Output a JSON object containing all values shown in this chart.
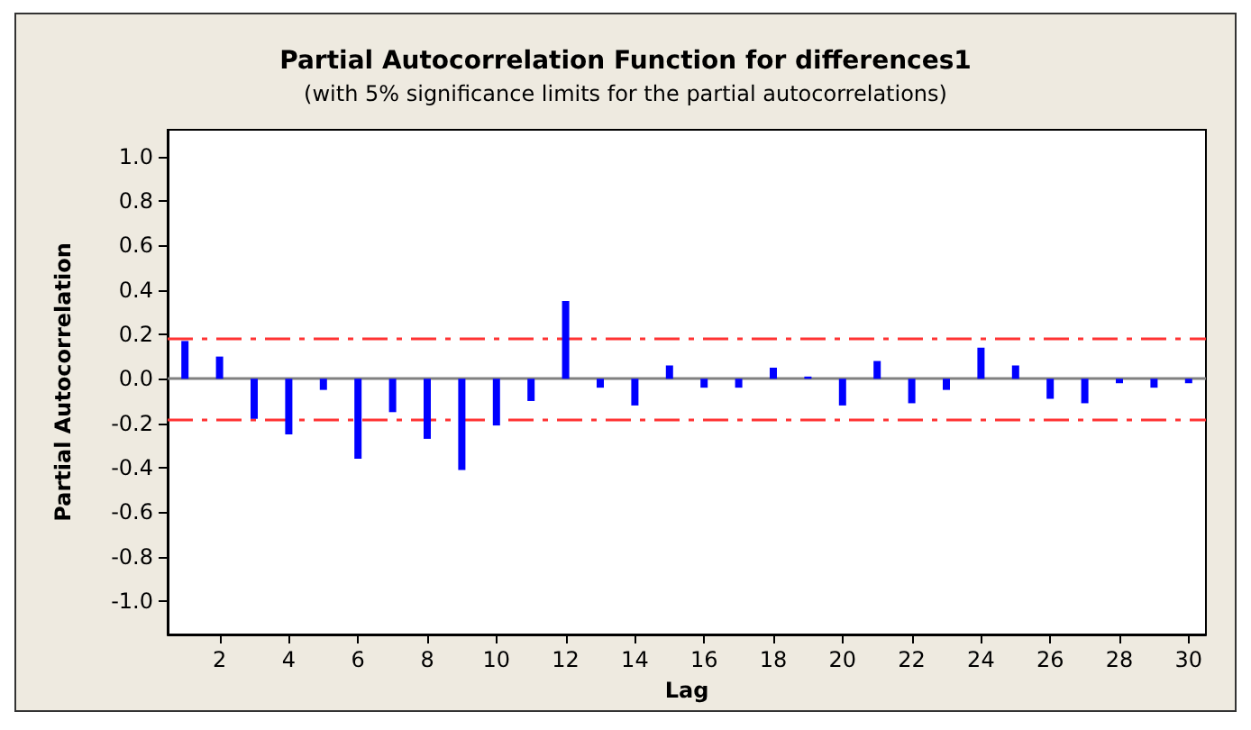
{
  "chart_data": {
    "type": "bar",
    "title": "Partial Autocorrelation Function for differences1",
    "subtitle": "(with 5% significance limits for the partial autocorrelations)",
    "xlabel": "Lag",
    "ylabel": "Partial Autocorrelation",
    "x": [
      1,
      2,
      3,
      4,
      5,
      6,
      7,
      8,
      9,
      10,
      11,
      12,
      13,
      14,
      15,
      16,
      17,
      18,
      19,
      20,
      21,
      22,
      23,
      24,
      25,
      26,
      27,
      28,
      29,
      30
    ],
    "values": [
      0.17,
      0.1,
      -0.18,
      -0.25,
      -0.05,
      -0.36,
      -0.15,
      -0.27,
      -0.41,
      -0.21,
      -0.1,
      0.35,
      -0.04,
      -0.12,
      0.06,
      -0.04,
      -0.04,
      0.05,
      0.01,
      -0.12,
      0.08,
      -0.11,
      -0.05,
      0.14,
      0.06,
      -0.09,
      -0.11,
      -0.02,
      -0.04,
      -0.02
    ],
    "color": "#0000ff",
    "xlim": [
      0.5,
      30.5
    ],
    "xticks": [
      2,
      4,
      6,
      8,
      10,
      12,
      14,
      16,
      18,
      20,
      22,
      24,
      26,
      28,
      30
    ],
    "ylim": [
      -1.15,
      1.12
    ],
    "yticks": [
      {
        "value": -1,
        "label": "-1.0"
      },
      {
        "value": -0.8,
        "label": "-0.8"
      },
      {
        "value": -0.6,
        "label": "-0.6"
      },
      {
        "value": -0.4,
        "label": "-0.4"
      },
      {
        "value": -0.2,
        "label": "-0.2"
      },
      {
        "value": 0,
        "label": "0.0"
      },
      {
        "value": 0.2,
        "label": "0.2"
      },
      {
        "value": 0.4,
        "label": "0.4"
      },
      {
        "value": 0.6,
        "label": "0.6"
      },
      {
        "value": 0.8,
        "label": "0.8"
      },
      {
        "value": 1,
        "label": "1.0"
      }
    ],
    "ref_lines": [
      {
        "axis": "y",
        "value": 0,
        "color": "#808080",
        "line_style": "solid"
      },
      {
        "axis": "y",
        "value": 0.18,
        "color": "#ff3333",
        "line_style": "dashed"
      },
      {
        "axis": "y",
        "value": -0.18,
        "color": "#ff3333",
        "line_style": "dashed"
      }
    ],
    "grid": false
  }
}
